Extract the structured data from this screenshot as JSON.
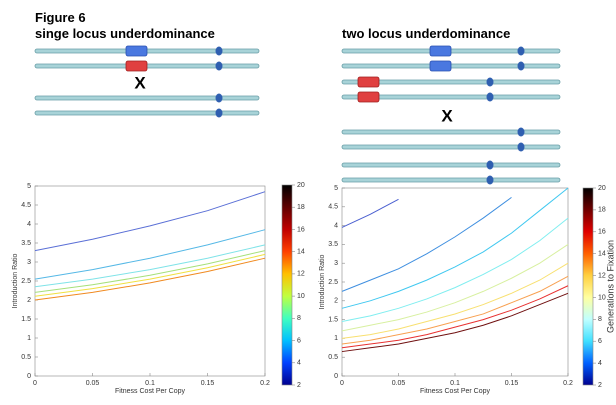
{
  "figure_label": "Figure 6",
  "diagrams": [
    {
      "title": "singe locus underdominance",
      "cross": "X"
    },
    {
      "title": "two locus underdominance",
      "cross": "X"
    }
  ],
  "chart_data": [
    {
      "type": "line",
      "xlabel": "Fitness Cost Per Copy",
      "ylabel": "Introduction Ratio",
      "x": [
        0,
        0.05,
        0.1,
        0.15,
        0.2
      ],
      "xlim": [
        0,
        0.2
      ],
      "xticks": [
        0,
        0.05,
        0.1,
        0.15,
        0.2
      ],
      "ylim": [
        0,
        5
      ],
      "yticks": [
        0,
        0.5,
        1,
        1.5,
        2,
        2.5,
        3,
        3.5,
        4,
        4.5,
        5
      ],
      "series": [
        {
          "color": "#5a6fd6",
          "values": [
            3.3,
            3.6,
            3.95,
            4.35,
            4.85
          ]
        },
        {
          "color": "#55b8e6",
          "values": [
            2.55,
            2.8,
            3.1,
            3.45,
            3.85
          ]
        },
        {
          "color": "#7fe3e8",
          "values": [
            2.35,
            2.55,
            2.8,
            3.1,
            3.45
          ]
        },
        {
          "color": "#a6e07a",
          "values": [
            2.2,
            2.4,
            2.65,
            2.95,
            3.3
          ]
        },
        {
          "color": "#f0e040",
          "values": [
            2.1,
            2.3,
            2.55,
            2.85,
            3.2
          ]
        },
        {
          "color": "#f08a20",
          "values": [
            2.0,
            2.2,
            2.45,
            2.75,
            3.1
          ]
        }
      ],
      "colorbar": {
        "lim": [
          2,
          20
        ],
        "ticks": [
          2,
          4,
          6,
          8,
          10,
          12,
          14,
          16,
          18,
          20
        ],
        "colors": [
          "#00008f",
          "#0040ff",
          "#00c0ff",
          "#40ffc0",
          "#c0ff40",
          "#ffc000",
          "#ff4000",
          "#c00000",
          "#600000",
          "#000000"
        ]
      }
    },
    {
      "type": "line",
      "xlabel": "Fitness Cost Per Copy",
      "ylabel": "Introduction Ratio",
      "x": [
        0,
        0.025,
        0.05,
        0.075,
        0.1,
        0.125,
        0.15,
        0.175,
        0.2
      ],
      "xlim": [
        0,
        0.2
      ],
      "xticks": [
        0,
        0.05,
        0.1,
        0.15,
        0.2
      ],
      "ylim": [
        0,
        5
      ],
      "yticks": [
        0,
        0.5,
        1,
        1.5,
        2,
        2.5,
        3,
        3.5,
        4,
        4.5,
        5
      ],
      "series": [
        {
          "color": "#4a5fd0",
          "values": [
            3.95,
            4.3,
            4.7,
            null,
            null,
            null,
            null,
            null,
            null
          ]
        },
        {
          "color": "#3f8fe0",
          "values": [
            2.25,
            2.55,
            2.85,
            3.25,
            3.7,
            4.2,
            4.75,
            null,
            null
          ]
        },
        {
          "color": "#40c8f0",
          "values": [
            1.8,
            2.0,
            2.25,
            2.55,
            2.9,
            3.3,
            3.8,
            4.4,
            5
          ]
        },
        {
          "color": "#80eef0",
          "values": [
            1.45,
            1.6,
            1.8,
            2.05,
            2.35,
            2.7,
            3.1,
            3.6,
            4.2
          ]
        },
        {
          "color": "#d8f0a0",
          "values": [
            1.2,
            1.35,
            1.5,
            1.7,
            1.95,
            2.25,
            2.6,
            3.0,
            3.5
          ]
        },
        {
          "color": "#f8e070",
          "values": [
            1.0,
            1.1,
            1.25,
            1.45,
            1.65,
            1.9,
            2.2,
            2.55,
            3.0
          ]
        },
        {
          "color": "#f8a050",
          "values": [
            0.85,
            0.95,
            1.1,
            1.25,
            1.45,
            1.65,
            1.95,
            2.25,
            2.65
          ]
        },
        {
          "color": "#e83030",
          "values": [
            0.75,
            0.85,
            0.95,
            1.1,
            1.3,
            1.5,
            1.75,
            2.05,
            2.4
          ]
        },
        {
          "color": "#701010",
          "values": [
            0.65,
            0.75,
            0.85,
            1.0,
            1.15,
            1.35,
            1.6,
            1.9,
            2.2
          ]
        }
      ],
      "colorbar": {
        "label": "Generations to Fixation",
        "lim": [
          2,
          20
        ],
        "ticks": [
          2,
          4,
          6,
          8,
          10,
          12,
          14,
          16,
          18,
          20
        ],
        "colors": [
          "#00008f",
          "#0060ff",
          "#40e0ff",
          "#c0ffff",
          "#ffffa0",
          "#ffd040",
          "#ff6000",
          "#e00000",
          "#700000",
          "#000000"
        ]
      }
    }
  ]
}
